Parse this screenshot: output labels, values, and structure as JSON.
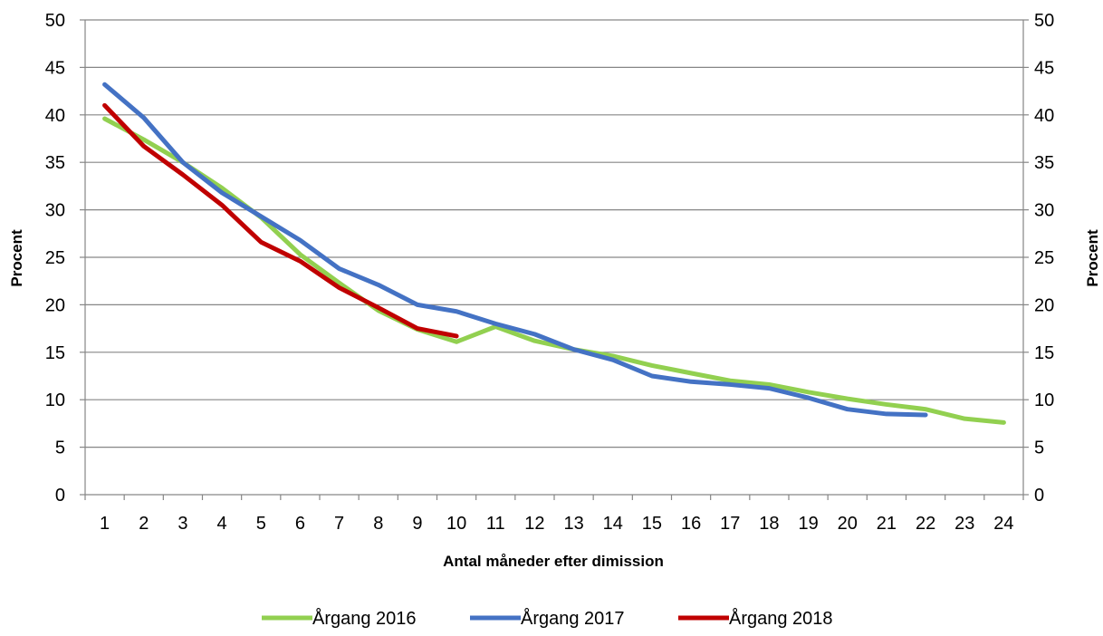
{
  "chart_data": {
    "type": "line",
    "x": [
      1,
      2,
      3,
      4,
      5,
      6,
      7,
      8,
      9,
      10,
      11,
      12,
      13,
      14,
      15,
      16,
      17,
      18,
      19,
      20,
      21,
      22,
      23,
      24
    ],
    "series": [
      {
        "name": "Årgang 2016",
        "color": "#92d050",
        "values": [
          39.6,
          37.4,
          35.0,
          32.3,
          29.2,
          25.3,
          22.3,
          19.4,
          17.4,
          16.1,
          17.7,
          16.2,
          15.3,
          14.6,
          13.6,
          12.8,
          12.0,
          11.6,
          10.8,
          10.1,
          9.5,
          9.0,
          8.0,
          7.6
        ]
      },
      {
        "name": "Årgang 2017",
        "color": "#4472c4",
        "values": [
          43.2,
          39.7,
          35.0,
          31.8,
          29.3,
          26.8,
          23.8,
          22.1,
          20.0,
          19.3,
          18.0,
          16.9,
          15.3,
          14.2,
          12.5,
          11.9,
          11.6,
          11.2,
          10.2,
          9.0,
          8.5,
          8.4,
          null,
          null
        ]
      },
      {
        "name": "Årgang 2018",
        "color": "#c00000",
        "values": [
          41.0,
          36.7,
          33.7,
          30.5,
          26.6,
          24.6,
          21.8,
          19.7,
          17.5,
          16.7,
          null,
          null,
          null,
          null,
          null,
          null,
          null,
          null,
          null,
          null,
          null,
          null,
          null,
          null
        ]
      }
    ],
    "xlabel": "Antal måneder efter dimission",
    "ylabel": "Procent",
    "ylabel_right": "Procent",
    "ylim": [
      0,
      50
    ],
    "yticks": [
      0,
      5,
      10,
      15,
      20,
      25,
      30,
      35,
      40,
      45,
      50
    ],
    "grid": true,
    "legend_position": "bottom"
  }
}
